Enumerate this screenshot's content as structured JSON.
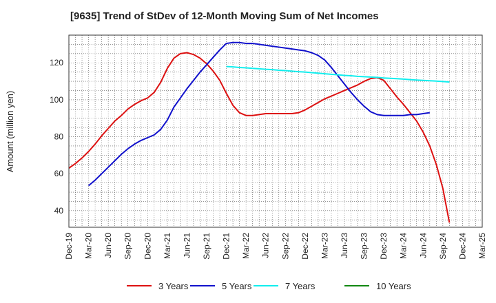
{
  "chart_data": {
    "type": "line",
    "title": "[9635]  Trend of StDev of 12-Month Moving Sum of Net Incomes",
    "ylabel": "Amount (million yen)",
    "xlabel": "",
    "x_ticks": [
      "Dec-19",
      "Mar-20",
      "Jun-20",
      "Sep-20",
      "Dec-20",
      "Mar-21",
      "Jun-21",
      "Sep-21",
      "Dec-21",
      "Mar-22",
      "Jun-22",
      "Sep-22",
      "Dec-22",
      "Mar-23",
      "Jun-23",
      "Sep-23",
      "Dec-23",
      "Mar-24",
      "Jun-24",
      "Sep-24",
      "Dec-24",
      "Mar-25"
    ],
    "y_ticks": [
      40,
      60,
      80,
      100,
      120
    ],
    "ylim": [
      31,
      135
    ],
    "grid": true,
    "legend_position": "bottom",
    "series": [
      {
        "name": "3 Years",
        "color": "#dd1111",
        "values": [
          [
            "Dec-19",
            63
          ],
          [
            "Jan-20",
            65.5
          ],
          [
            "Feb-20",
            68.5
          ],
          [
            "Mar-20",
            72
          ],
          [
            "Apr-20",
            76
          ],
          [
            "May-20",
            80.5
          ],
          [
            "Jun-20",
            84.5
          ],
          [
            "Jul-20",
            88.5
          ],
          [
            "Aug-20",
            91.5
          ],
          [
            "Sep-20",
            95
          ],
          [
            "Oct-20",
            97.5
          ],
          [
            "Nov-20",
            99.5
          ],
          [
            "Dec-20",
            101
          ],
          [
            "Jan-21",
            104
          ],
          [
            "Feb-21",
            109.5
          ],
          [
            "Mar-21",
            117
          ],
          [
            "Apr-21",
            122.5
          ],
          [
            "May-21",
            125
          ],
          [
            "Jun-21",
            125.5
          ],
          [
            "Jul-21",
            124.5
          ],
          [
            "Aug-21",
            122.5
          ],
          [
            "Sep-21",
            119.5
          ],
          [
            "Oct-21",
            115.5
          ],
          [
            "Nov-21",
            110.5
          ],
          [
            "Dec-21",
            103.5
          ],
          [
            "Jan-22",
            97
          ],
          [
            "Feb-22",
            93
          ],
          [
            "Mar-22",
            91.5
          ],
          [
            "Apr-22",
            91.5
          ],
          [
            "May-22",
            92
          ],
          [
            "Jun-22",
            92.5
          ],
          [
            "Jul-22",
            92.5
          ],
          [
            "Aug-22",
            92.5
          ],
          [
            "Sep-22",
            92.5
          ],
          [
            "Oct-22",
            92.5
          ],
          [
            "Nov-22",
            93
          ],
          [
            "Dec-22",
            94.5
          ],
          [
            "Jan-23",
            96.5
          ],
          [
            "Feb-23",
            98.5
          ],
          [
            "Mar-23",
            100.5
          ],
          [
            "Apr-23",
            102
          ],
          [
            "May-23",
            103.5
          ],
          [
            "Jun-23",
            105
          ],
          [
            "Jul-23",
            106.5
          ],
          [
            "Aug-23",
            108
          ],
          [
            "Sep-23",
            110
          ],
          [
            "Oct-23",
            111.5
          ],
          [
            "Nov-23",
            112
          ],
          [
            "Dec-23",
            110.5
          ],
          [
            "Jan-24",
            106
          ],
          [
            "Feb-24",
            101.5
          ],
          [
            "Mar-24",
            97.5
          ],
          [
            "Apr-24",
            93
          ],
          [
            "May-24",
            88.5
          ],
          [
            "Jun-24",
            82.5
          ],
          [
            "Jul-24",
            75
          ],
          [
            "Aug-24",
            65
          ],
          [
            "Sep-24",
            52
          ],
          [
            "Oct-24",
            33.5
          ]
        ]
      },
      {
        "name": "5 Years",
        "color": "#1111cc",
        "values": [
          [
            "Mar-20",
            53.5
          ],
          [
            "Apr-20",
            56.5
          ],
          [
            "May-20",
            60
          ],
          [
            "Jun-20",
            63.5
          ],
          [
            "Jul-20",
            67
          ],
          [
            "Aug-20",
            70.5
          ],
          [
            "Sep-20",
            73.5
          ],
          [
            "Oct-20",
            76
          ],
          [
            "Nov-20",
            78
          ],
          [
            "Dec-20",
            79.5
          ],
          [
            "Jan-21",
            81
          ],
          [
            "Feb-21",
            84
          ],
          [
            "Mar-21",
            89
          ],
          [
            "Apr-21",
            96
          ],
          [
            "May-21",
            101
          ],
          [
            "Jun-21",
            106
          ],
          [
            "Jul-21",
            110.5
          ],
          [
            "Aug-21",
            115
          ],
          [
            "Sep-21",
            119
          ],
          [
            "Oct-21",
            123
          ],
          [
            "Nov-21",
            127
          ],
          [
            "Dec-21",
            130.5
          ],
          [
            "Jan-22",
            131
          ],
          [
            "Feb-22",
            131
          ],
          [
            "Mar-22",
            130.5
          ],
          [
            "Apr-22",
            130.5
          ],
          [
            "May-22",
            130
          ],
          [
            "Jun-22",
            129.5
          ],
          [
            "Jul-22",
            129
          ],
          [
            "Aug-22",
            128.5
          ],
          [
            "Sep-22",
            128
          ],
          [
            "Oct-22",
            127.5
          ],
          [
            "Nov-22",
            127
          ],
          [
            "Dec-22",
            126.5
          ],
          [
            "Jan-23",
            125.5
          ],
          [
            "Feb-23",
            124
          ],
          [
            "Mar-23",
            121.5
          ],
          [
            "Apr-23",
            117.5
          ],
          [
            "May-23",
            113
          ],
          [
            "Jun-23",
            108.5
          ],
          [
            "Jul-23",
            104
          ],
          [
            "Aug-23",
            100
          ],
          [
            "Sep-23",
            96.5
          ],
          [
            "Oct-23",
            93.5
          ],
          [
            "Nov-23",
            92
          ],
          [
            "Dec-23",
            91.5
          ],
          [
            "Jan-24",
            91.5
          ],
          [
            "Feb-24",
            91.5
          ],
          [
            "Mar-24",
            91.5
          ],
          [
            "Apr-24",
            92
          ],
          [
            "May-24",
            92
          ],
          [
            "Jun-24",
            92.5
          ],
          [
            "Jul-24",
            93
          ]
        ]
      },
      {
        "name": "7 Years",
        "color": "#11eeee",
        "values": [
          [
            "Dec-21",
            118
          ],
          [
            "Jan-22",
            117.8
          ],
          [
            "Feb-22",
            117.5
          ],
          [
            "Mar-22",
            117.3
          ],
          [
            "Apr-22",
            117
          ],
          [
            "May-22",
            116.8
          ],
          [
            "Jun-22",
            116.5
          ],
          [
            "Jul-22",
            116.3
          ],
          [
            "Aug-22",
            116
          ],
          [
            "Sep-22",
            115.8
          ],
          [
            "Oct-22",
            115.5
          ],
          [
            "Nov-22",
            115.2
          ],
          [
            "Dec-22",
            115
          ],
          [
            "Jan-23",
            114.7
          ],
          [
            "Feb-23",
            114.4
          ],
          [
            "Mar-23",
            114.1
          ],
          [
            "Apr-23",
            113.8
          ],
          [
            "May-23",
            113.5
          ],
          [
            "Jun-23",
            113.2
          ],
          [
            "Jul-23",
            113
          ],
          [
            "Aug-23",
            112.7
          ],
          [
            "Sep-23",
            112.5
          ],
          [
            "Oct-23",
            112.3
          ],
          [
            "Nov-23",
            112.1
          ],
          [
            "Dec-23",
            111.8
          ],
          [
            "Jan-24",
            111.6
          ],
          [
            "Feb-24",
            111.4
          ],
          [
            "Mar-24",
            111.2
          ],
          [
            "Apr-24",
            110.9
          ],
          [
            "May-24",
            110.7
          ],
          [
            "Jun-24",
            110.5
          ],
          [
            "Jul-24",
            110.3
          ],
          [
            "Aug-24",
            110.1
          ],
          [
            "Sep-24",
            109.9
          ],
          [
            "Oct-24",
            109.6
          ]
        ]
      },
      {
        "name": "10 Years",
        "color": "#118811",
        "values": []
      }
    ]
  }
}
